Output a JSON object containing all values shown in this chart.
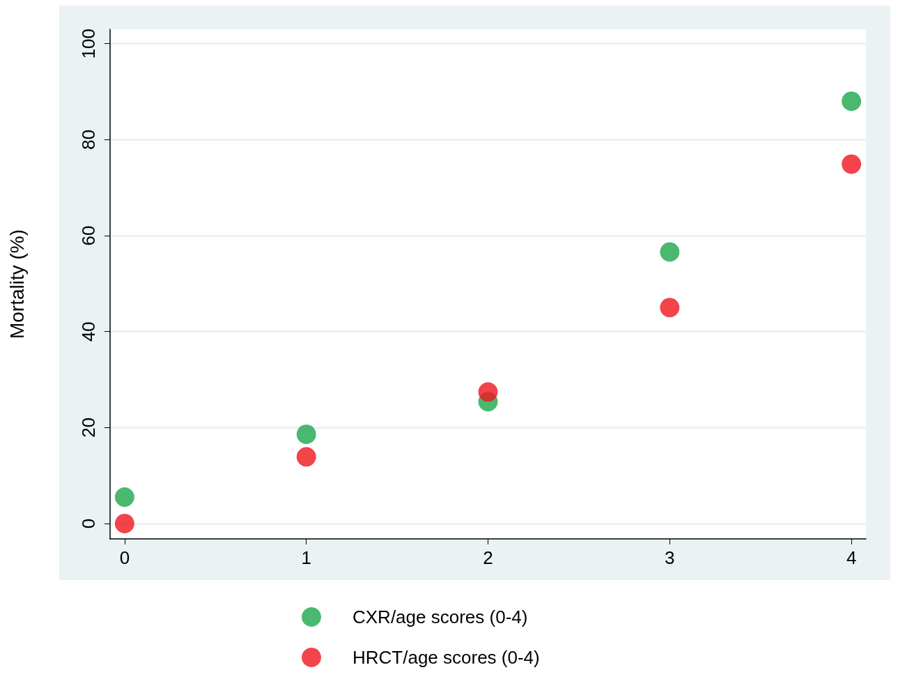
{
  "chart_data": {
    "type": "scatter",
    "ylabel": "Mortality (%)",
    "x": [
      0,
      1,
      2,
      3,
      4
    ],
    "series": [
      {
        "name": "CXR/age scores (0-4)",
        "color": "#1ea64b",
        "values": [
          5.5,
          18.6,
          25.4,
          56.6,
          88.0
        ]
      },
      {
        "name": "HRCT/age scores (0-4)",
        "color": "#f0141e",
        "values": [
          0,
          13.9,
          27.4,
          45.0,
          74.9
        ]
      }
    ],
    "xlim": [
      -0.08,
      4.08
    ],
    "xticks": [
      0,
      1,
      2,
      3,
      4
    ],
    "ylim": [
      -3.2,
      103
    ],
    "yticks": [
      0,
      20,
      40,
      60,
      80,
      100
    ],
    "grid": "y",
    "legend": "bottom",
    "marker": "circle"
  }
}
